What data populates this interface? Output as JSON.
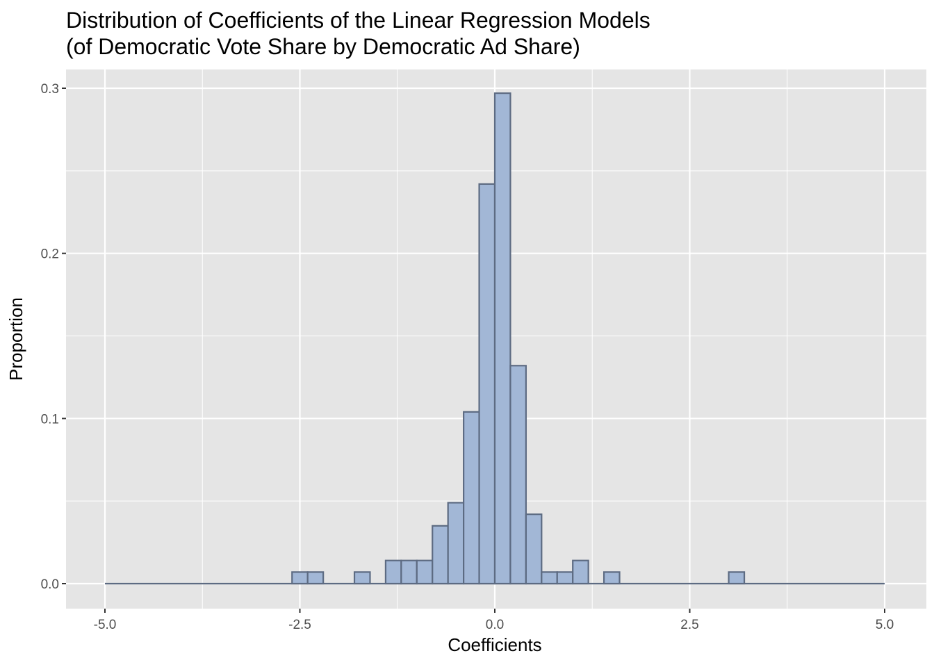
{
  "chart_data": {
    "type": "bar",
    "title": "Distribution of Coefficients of the Linear Regression Models",
    "subtitle": "(of Democratic Vote Share by Democratic Ad Share)",
    "xlabel": "Coefficients",
    "ylabel": "Proportion",
    "xlim": [
      -5.0,
      5.0
    ],
    "ylim": [
      0.0,
      0.3
    ],
    "x_ticks": [
      "-5.0",
      "-2.5",
      "0.0",
      "2.5",
      "5.0"
    ],
    "x_tick_values": [
      -5.0,
      -2.5,
      0.0,
      2.5,
      5.0
    ],
    "y_ticks": [
      "0.0",
      "0.1",
      "0.2",
      "0.3"
    ],
    "y_tick_values": [
      0.0,
      0.1,
      0.2,
      0.3
    ],
    "grid": true,
    "bin_width": 0.2,
    "bin_start": -5.0,
    "values": [
      0,
      0,
      0,
      0,
      0,
      0,
      0,
      0,
      0,
      0,
      0,
      0,
      0.007,
      0.007,
      0,
      0,
      0.007,
      0,
      0.014,
      0.014,
      0.014,
      0.035,
      0.049,
      0.104,
      0.242,
      0.297,
      0.132,
      0.042,
      0.007,
      0.007,
      0.014,
      0,
      0.007,
      0,
      0,
      0,
      0,
      0,
      0,
      0,
      0.007,
      0,
      0,
      0,
      0,
      0,
      0,
      0,
      0,
      0
    ],
    "colors": {
      "panel": "#e5e5e5",
      "grid": "#ffffff",
      "bar_fill": "#a2b7d6",
      "bar_stroke": "#5d6b82",
      "baseline": "#5d6b82"
    }
  }
}
